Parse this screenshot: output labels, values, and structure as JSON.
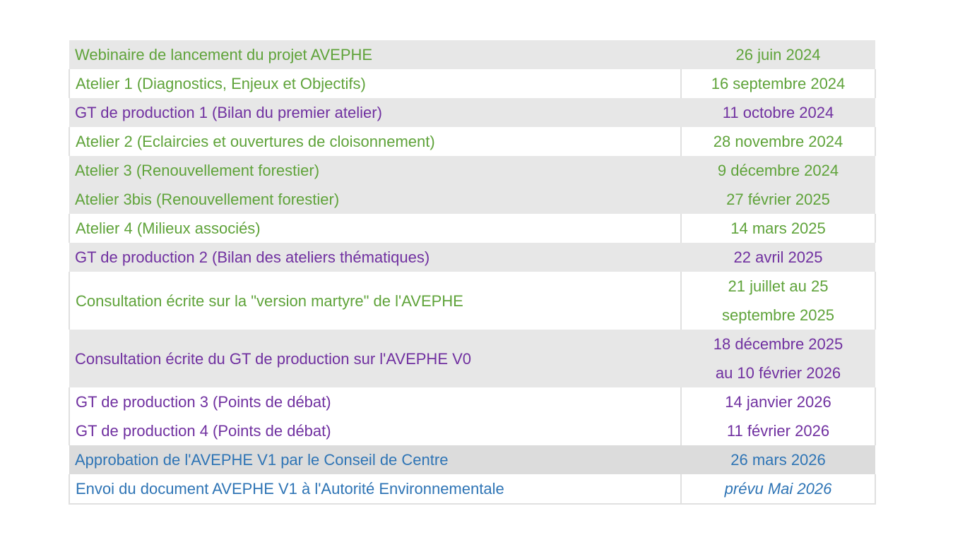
{
  "colors": {
    "green": "#5fa33a",
    "purple": "#7030a0",
    "blue": "#2e74b5",
    "shade": "#e7e7e7"
  },
  "rows": [
    {
      "event": "Webinaire de lancement du projet AVEPHE",
      "date": [
        "26 juin 2024"
      ],
      "color": "green",
      "bg": "shade"
    },
    {
      "event": "Atelier 1 (Diagnostics, Enjeux et Objectifs)",
      "date": [
        "16 septembre 2024"
      ],
      "color": "green",
      "bg": "white"
    },
    {
      "event": "GT de production 1 (Bilan du premier atelier)",
      "date": [
        "11 octobre 2024"
      ],
      "color": "purple",
      "bg": "shade"
    },
    {
      "event": "Atelier 2 (Eclaircies et ouvertures de cloisonnement)",
      "date": [
        "28 novembre 2024"
      ],
      "color": "green",
      "bg": "white"
    },
    {
      "event": "Atelier 3 (Renouvellement forestier)",
      "date": [
        "9 décembre 2024"
      ],
      "color": "green",
      "bg": "shade"
    },
    {
      "event": "Atelier 3bis (Renouvellement forestier)",
      "date": [
        "27 février 2025"
      ],
      "color": "green",
      "bg": "shade"
    },
    {
      "event": "Atelier 4 (Milieux associés)",
      "date": [
        "14 mars 2025"
      ],
      "color": "green",
      "bg": "white"
    },
    {
      "event": "GT de production 2 (Bilan des ateliers thématiques)",
      "date": [
        "22 avril 2025"
      ],
      "color": "purple",
      "bg": "shade"
    },
    {
      "event": "Consultation écrite sur la \"version martyre\" de l'AVEPHE",
      "date": [
        "21 juillet au 25",
        "septembre 2025"
      ],
      "color": "green",
      "bg": "white"
    },
    {
      "event": "Consultation écrite du GT de production sur l'AVEPHE V0",
      "date": [
        "18 décembre 2025",
        "au 10 février  2026"
      ],
      "color": "purple",
      "bg": "shade"
    },
    {
      "event": "GT de production 3 (Points de débat)",
      "date": [
        "14 janvier 2026"
      ],
      "color": "purple",
      "bg": "white"
    },
    {
      "event": "GT de production 4 (Points de débat)",
      "date": [
        "11 février 2026"
      ],
      "color": "purple",
      "bg": "white"
    },
    {
      "event": "Approbation de l'AVEPHE V1 par le Conseil de Centre",
      "date": [
        "26 mars 2026"
      ],
      "color": "blue",
      "bg": "shade-dark"
    },
    {
      "event": "Envoi du document AVEPHE V1 à l'Autorité Environnementale",
      "date": [
        "prévu Mai 2026"
      ],
      "color": "blue",
      "bg": "white",
      "italic_date": true
    }
  ]
}
